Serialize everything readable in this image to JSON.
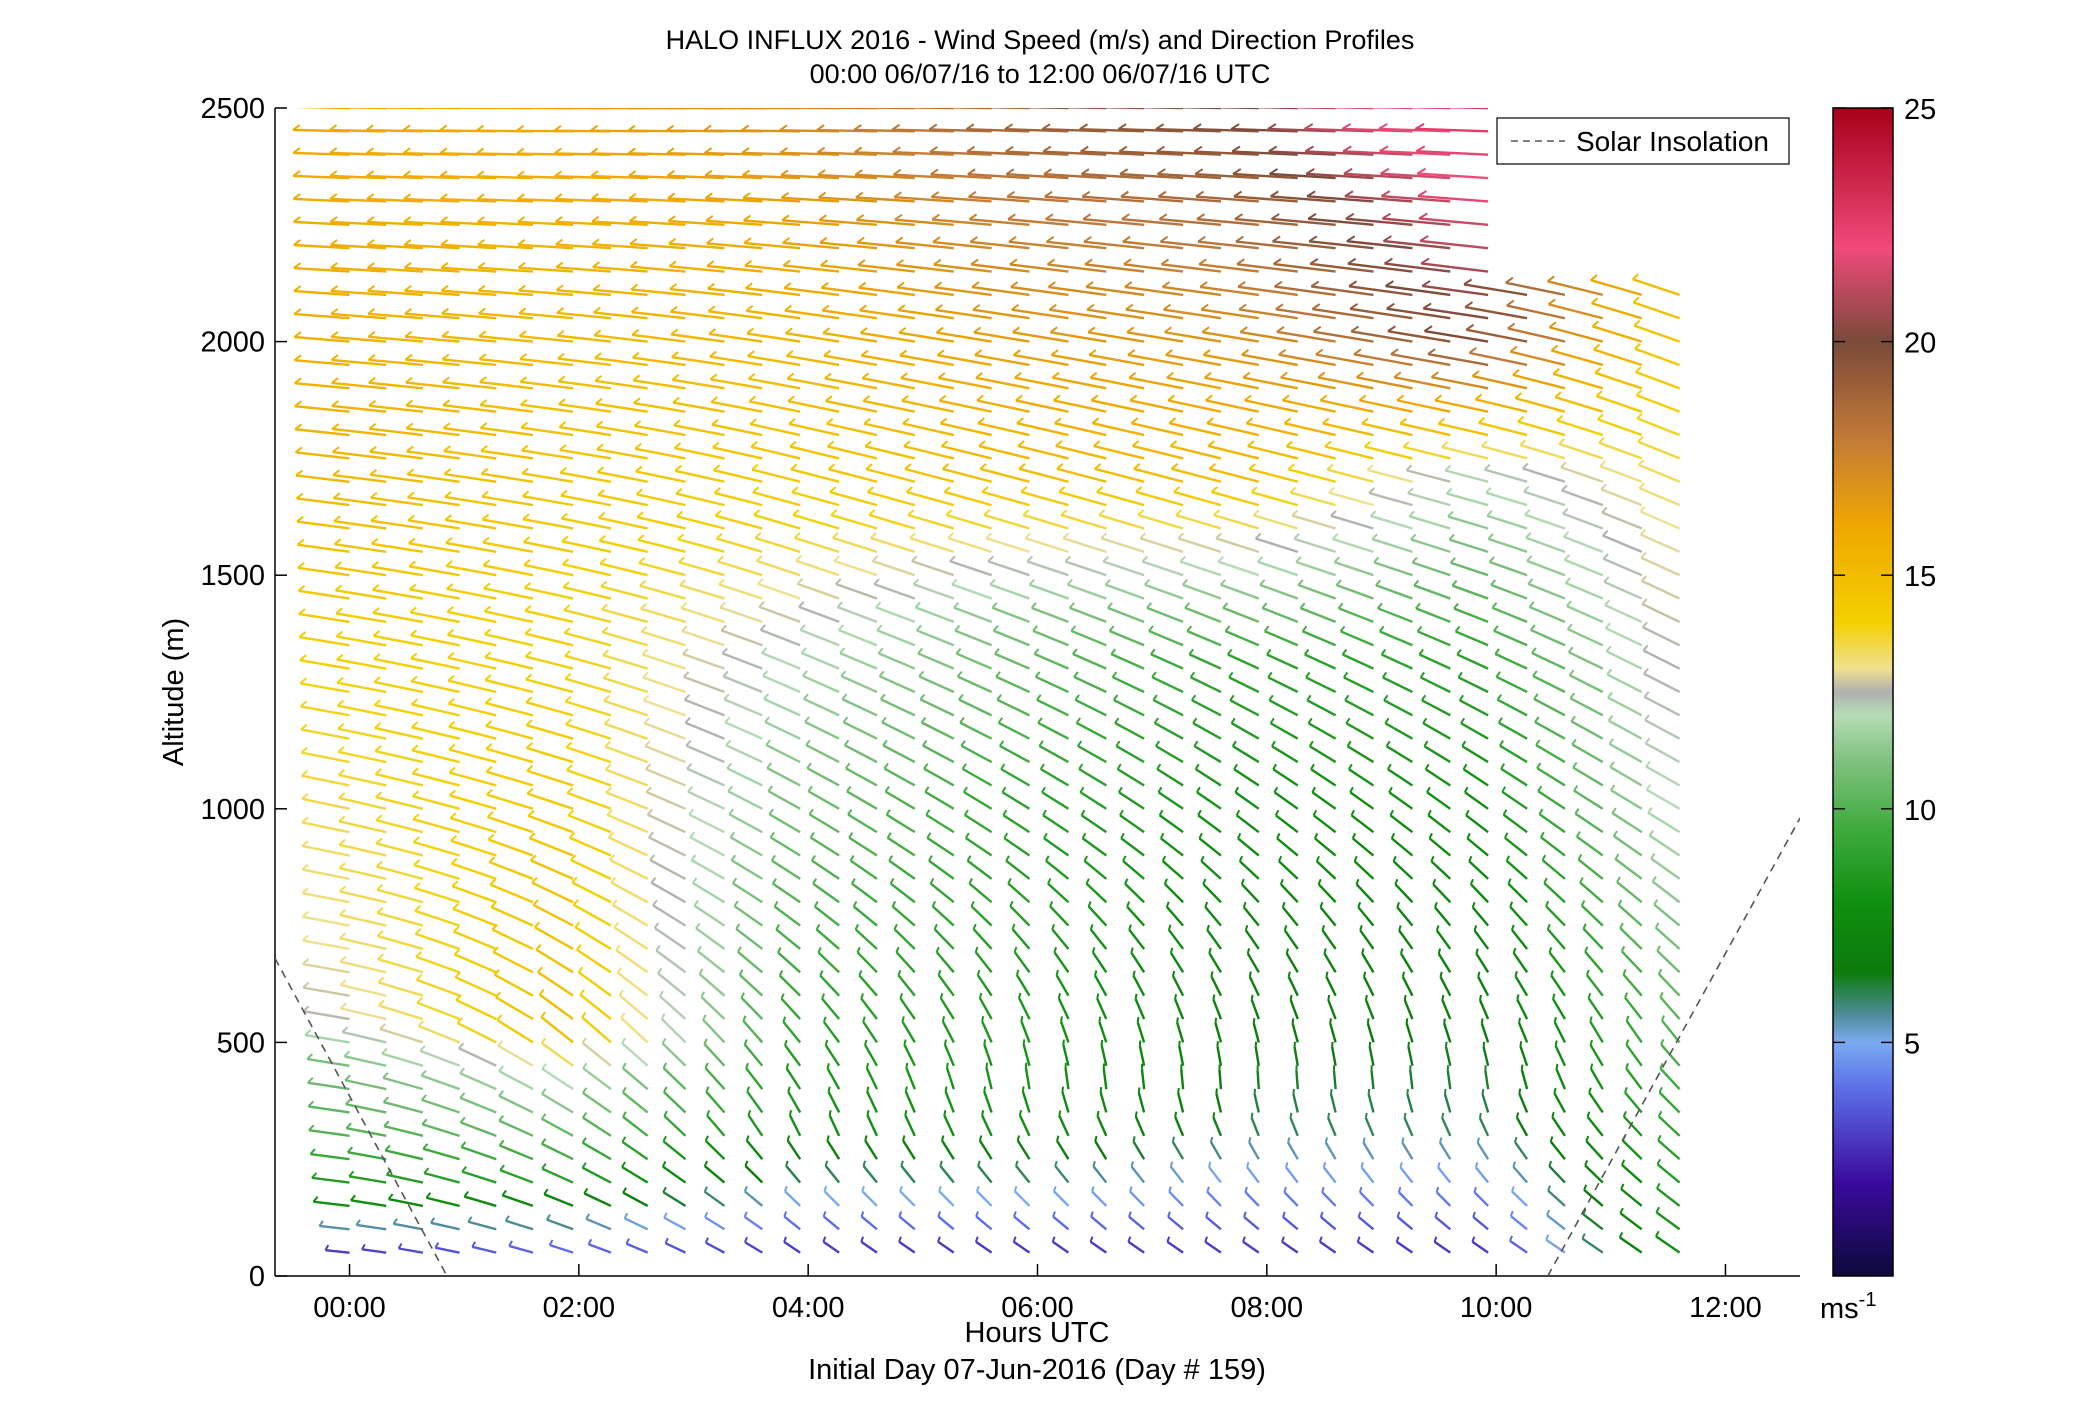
{
  "chart_data": {
    "type": "wind-barb",
    "title": "HALO INFLUX 2016 - Wind Speed (m/s) and Direction Profiles",
    "subtitle": "00:00 06/07/16 to 12:00 06/07/16  UTC",
    "xlabel": "Hours UTC",
    "xlabel2": "Initial Day 07-Jun-2016 (Day # 159)",
    "ylabel": "Altitude (m)",
    "xlim": [
      -0.65,
      12.65
    ],
    "ylim": [
      0,
      2500
    ],
    "xticks": [
      {
        "value": 0,
        "label": "00:00"
      },
      {
        "value": 2,
        "label": "02:00"
      },
      {
        "value": 4,
        "label": "04:00"
      },
      {
        "value": 6,
        "label": "06:00"
      },
      {
        "value": 8,
        "label": "08:00"
      },
      {
        "value": 10,
        "label": "10:00"
      },
      {
        "value": 12,
        "label": "12:00"
      }
    ],
    "yticks": [
      {
        "value": 0,
        "label": "0"
      },
      {
        "value": 500,
        "label": "500"
      },
      {
        "value": 1000,
        "label": "1000"
      },
      {
        "value": 1500,
        "label": "1500"
      },
      {
        "value": 2000,
        "label": "2000"
      },
      {
        "value": 2500,
        "label": "2500"
      }
    ],
    "legend": {
      "label": "Solar Insolation",
      "position": "top-right"
    },
    "solar_insolation": {
      "morning": [
        [
          -0.65,
          680
        ],
        [
          0.85,
          0
        ]
      ],
      "evening": [
        [
          10.45,
          0
        ],
        [
          12.65,
          980
        ]
      ]
    },
    "colorbar": {
      "unit": "ms",
      "unit_exponent": "-1",
      "range": [
        0,
        25
      ],
      "ticks": [
        {
          "value": 5,
          "label": "5"
        },
        {
          "value": 10,
          "label": "10"
        },
        {
          "value": 15,
          "label": "15"
        },
        {
          "value": 20,
          "label": "20"
        },
        {
          "value": 25,
          "label": "25"
        }
      ],
      "stops": [
        {
          "v": 0,
          "color": "#0d0a3a"
        },
        {
          "v": 2,
          "color": "#3b0a9e"
        },
        {
          "v": 4,
          "color": "#5c6ee8"
        },
        {
          "v": 5,
          "color": "#7aaaf0"
        },
        {
          "v": 5.6,
          "color": "#4f8c9a"
        },
        {
          "v": 6.5,
          "color": "#0b7b0b"
        },
        {
          "v": 8,
          "color": "#108f10"
        },
        {
          "v": 9.5,
          "color": "#3caa3c"
        },
        {
          "v": 11,
          "color": "#7fc07f"
        },
        {
          "v": 12,
          "color": "#b4dcb4"
        },
        {
          "v": 12.5,
          "color": "#b0b0b0"
        },
        {
          "v": 13,
          "color": "#f0e090"
        },
        {
          "v": 14,
          "color": "#f3d000"
        },
        {
          "v": 16,
          "color": "#f0a800"
        },
        {
          "v": 18,
          "color": "#c07838"
        },
        {
          "v": 20,
          "color": "#7a4a3a"
        },
        {
          "v": 22,
          "color": "#f04a7a"
        },
        {
          "v": 25,
          "color": "#a8001a"
        }
      ]
    },
    "profile_times": [
      0,
      0.32,
      0.64,
      0.96,
      1.28,
      1.6,
      1.95,
      2.28,
      2.6,
      2.93,
      3.27,
      3.6,
      3.93,
      4.27,
      4.6,
      4.93,
      5.27,
      5.6,
      5.93,
      6.27,
      6.6,
      6.93,
      7.27,
      7.6,
      7.93,
      8.27,
      8.6,
      8.93,
      9.27,
      9.6,
      9.93,
      10.27,
      10.6,
      10.93,
      11.27,
      11.6
    ],
    "series_note": "Each profile has wind barbs every 50 m from 50 m to 2500 m; speed (m/s) sets colour and length, direction (deg) sets orientation.",
    "profiles_data": [
      {
        "t": 0,
        "top": 2500,
        "speed": [
          [
            50,
            3
          ],
          [
            150,
            8
          ],
          [
            300,
            10
          ],
          [
            480,
            11
          ],
          [
            520,
            12.5
          ],
          [
            700,
            13
          ],
          [
            1300,
            14
          ],
          [
            1800,
            15.5
          ],
          [
            2500,
            16
          ]
        ],
        "dir": [
          [
            50,
            280
          ],
          [
            400,
            285
          ],
          [
            1000,
            290
          ],
          [
            2500,
            272
          ]
        ]
      },
      {
        "t": 2,
        "top": 2500,
        "speed": [
          [
            50,
            4
          ],
          [
            200,
            9
          ],
          [
            400,
            12
          ],
          [
            500,
            15
          ],
          [
            1400,
            14
          ],
          [
            2500,
            16
          ]
        ],
        "dir": [
          [
            50,
            300
          ],
          [
            500,
            325
          ],
          [
            1000,
            300
          ],
          [
            2500,
            270
          ]
        ]
      },
      {
        "t": 4,
        "top": 2500,
        "speed": [
          [
            50,
            3
          ],
          [
            300,
            8
          ],
          [
            800,
            10
          ],
          [
            1300,
            12
          ],
          [
            1600,
            14
          ],
          [
            2500,
            17
          ]
        ],
        "dir": [
          [
            50,
            320
          ],
          [
            300,
            345
          ],
          [
            800,
            320
          ],
          [
            1500,
            300
          ],
          [
            2500,
            270
          ]
        ]
      },
      {
        "t": 6,
        "top": 2500,
        "speed": [
          [
            50,
            3
          ],
          [
            300,
            8
          ],
          [
            1000,
            9
          ],
          [
            1400,
            11
          ],
          [
            1700,
            15
          ],
          [
            2500,
            19
          ]
        ],
        "dir": [
          [
            50,
            320
          ],
          [
            400,
            355
          ],
          [
            900,
            320
          ],
          [
            1500,
            300
          ],
          [
            2500,
            272
          ]
        ]
      },
      {
        "t": 8,
        "top": 2500,
        "speed": [
          [
            50,
            3
          ],
          [
            300,
            6
          ],
          [
            1000,
            8
          ],
          [
            1300,
            9
          ],
          [
            1700,
            15
          ],
          [
            2500,
            20
          ]
        ],
        "dir": [
          [
            50,
            320
          ],
          [
            400,
            358
          ],
          [
            900,
            325
          ],
          [
            1500,
            300
          ],
          [
            2500,
            272
          ]
        ]
      },
      {
        "t": 10,
        "top": 2500,
        "speed": [
          [
            50,
            3
          ],
          [
            300,
            6
          ],
          [
            1000,
            8
          ],
          [
            1300,
            9
          ],
          [
            1700,
            12
          ],
          [
            2000,
            20
          ],
          [
            2500,
            23
          ]
        ],
        "dir": [
          [
            50,
            320
          ],
          [
            400,
            355
          ],
          [
            900,
            325
          ],
          [
            1500,
            300
          ],
          [
            2500,
            272
          ]
        ]
      },
      {
        "t": 11.6,
        "top": 2100,
        "speed": [
          [
            50,
            8
          ],
          [
            500,
            10
          ],
          [
            1000,
            12
          ],
          [
            1600,
            13
          ],
          [
            2100,
            15
          ]
        ],
        "dir": [
          [
            50,
            320
          ],
          [
            500,
            335
          ],
          [
            1000,
            315
          ],
          [
            2100,
            300
          ]
        ]
      }
    ]
  }
}
